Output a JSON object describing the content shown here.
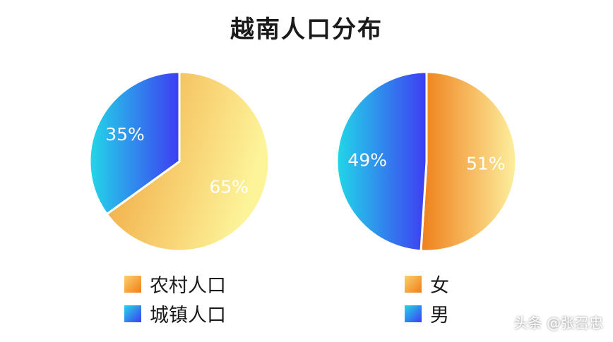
{
  "title": "越南人口分布",
  "watermark": "头条 @张召忠",
  "colors": {
    "orange_light": "#fdf49a",
    "orange_dark": "#ef7f1a",
    "blue_light": "#22d7e8",
    "blue_dark": "#3e3cf2"
  },
  "chart_data": [
    {
      "type": "pie",
      "title": "",
      "slices": [
        {
          "label": "农村人口",
          "value": 65,
          "display": "65%",
          "color": "orange"
        },
        {
          "label": "城镇人口",
          "value": 35,
          "display": "35%",
          "color": "blue"
        }
      ],
      "legend_position": "bottom"
    },
    {
      "type": "pie",
      "title": "",
      "slices": [
        {
          "label": "女",
          "value": 51,
          "display": "51%",
          "color": "orange"
        },
        {
          "label": "男",
          "value": 49,
          "display": "49%",
          "color": "blue"
        }
      ],
      "legend_position": "bottom"
    }
  ],
  "legends": {
    "left": [
      "农村人口",
      "城镇人口"
    ],
    "right": [
      "女",
      "男"
    ]
  }
}
